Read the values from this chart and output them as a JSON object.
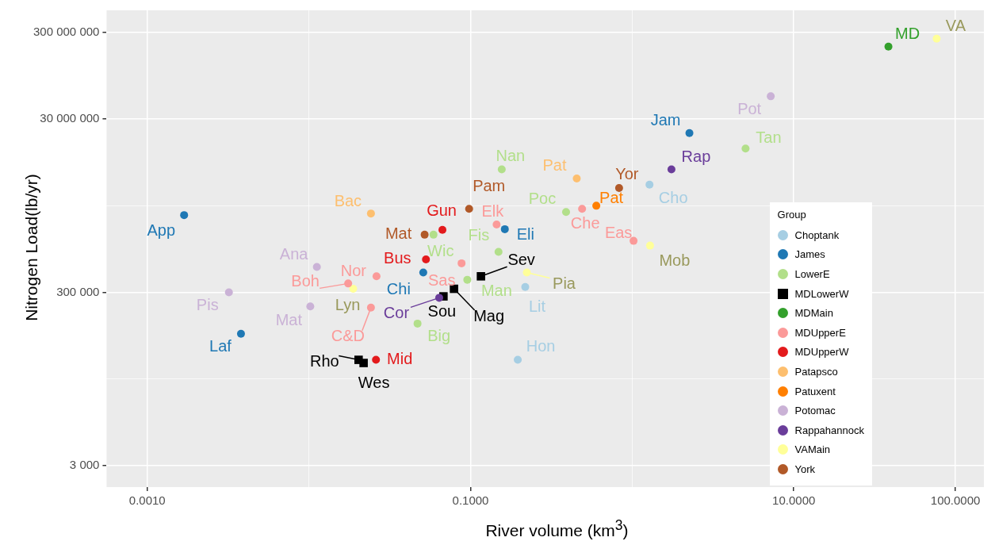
{
  "chart_data": {
    "type": "scatter",
    "xlabel": "River volume (km$^{3}$)",
    "ylabel": "Nitrogen Load(lb/yr)",
    "legend_title": "Group",
    "legend": "right",
    "grid": true,
    "log": "xy",
    "marker": "circle",
    "xlim": [
      0.00056,
      150
    ],
    "ylim": [
      1700,
      540000000
    ],
    "xticks": [
      {
        "value": 0.001,
        "label": "0.0010"
      },
      {
        "value": 0.01,
        "label": null
      },
      {
        "value": 0.1,
        "label": "0.1000"
      },
      {
        "value": 1,
        "label": null
      },
      {
        "value": 10,
        "label": "10.0000"
      },
      {
        "value": 100,
        "label": "100.0000"
      }
    ],
    "yticks": [
      {
        "value": 3000,
        "label": "3 000"
      },
      {
        "value": 30000,
        "label": null
      },
      {
        "value": 300000,
        "label": "300 000"
      },
      {
        "value": 3000000,
        "label": null
      },
      {
        "value": 30000000,
        "label": "30 000 000"
      },
      {
        "value": 300000000,
        "label": "300 000 000"
      }
    ],
    "series": [
      {
        "name": "Choptank",
        "color": "#a6cee3",
        "x": [
          1.28,
          0.218,
          0.196
        ],
        "values": [
          5250000,
          347000,
          50000
        ]
      },
      {
        "name": "James",
        "color": "#1f78b4",
        "x": [
          0.00169,
          0.0038,
          2.26,
          0.163,
          0.051
        ],
        "values": [
          2340000,
          100000,
          20700000,
          1610000,
          510000
        ]
      },
      {
        "name": "LowerE",
        "color": "#b2df8a",
        "x": [
          0.156,
          5.03,
          0.39,
          0.149,
          0.059,
          0.0955,
          0.047
        ],
        "values": [
          7900000,
          13700000,
          2540000,
          880000,
          1390000,
          420000,
          131000
        ]
      },
      {
        "name": "MDLowerW",
        "color": "#000000",
        "marker": "square",
        "x": [
          0.116,
          0.079,
          0.068,
          0.0203,
          0.0218
        ],
        "values": [
          460000,
          330000,
          270000,
          50000,
          46000
        ]
      },
      {
        "name": "MDMain",
        "color": "#33a02c",
        "x": [
          38.5
        ],
        "values": [
          206000000
        ]
      },
      {
        "name": "MDUpperE",
        "color": "#fb9a99",
        "x": [
          0.145,
          0.49,
          1.02,
          0.0262,
          0.0175,
          0.0242,
          0.088
        ],
        "values": [
          1820000,
          2760000,
          1180000,
          460000,
          380000,
          200000,
          650000
        ]
      },
      {
        "name": "MDUpperW",
        "color": "#e31a1c",
        "x": [
          0.067,
          0.053,
          0.026
        ],
        "values": [
          1580000,
          720000,
          50000
        ]
      },
      {
        "name": "Patapsco",
        "color": "#fdbf6f",
        "x": [
          0.0242,
          0.454
        ],
        "values": [
          2440000,
          6200000
        ]
      },
      {
        "name": "Patuxent",
        "color": "#ff7f00",
        "x": [
          0.6
        ],
        "values": [
          3000000
        ]
      },
      {
        "name": "Potomac",
        "color": "#cab2d6",
        "x": [
          7.2,
          0.0112,
          0.0032,
          0.0102
        ],
        "values": [
          55000000,
          590000,
          300000,
          207000
        ]
      },
      {
        "name": "Rappahannock",
        "color": "#6a3d9a",
        "x": [
          1.75,
          0.064
        ],
        "values": [
          7900000,
          260000
        ]
      },
      {
        "name": "VAMain",
        "color": "#ffff99",
        "x": [
          76.5,
          1.29,
          0.223,
          0.0188
        ],
        "values": [
          254000000,
          1040000,
          510000,
          330000
        ]
      },
      {
        "name": "York",
        "color": "#b15928",
        "x": [
          0.83,
          0.098,
          0.052
        ],
        "values": [
          4800000,
          2760000,
          1390000
        ]
      }
    ],
    "annotations": [
      {
        "text": "Cho",
        "x": 1.28,
        "y": 5250000
      },
      {
        "text": "Lit",
        "x": 0.218,
        "y": 347000
      },
      {
        "text": "Hon",
        "x": 0.196,
        "y": 50000
      },
      {
        "text": "App",
        "x": 0.00169,
        "y": 2340000
      },
      {
        "text": "Laf",
        "x": 0.0038,
        "y": 100000
      },
      {
        "text": "Jam",
        "x": 2.26,
        "y": 20700000
      },
      {
        "text": "Eli",
        "x": 0.163,
        "y": 1610000
      },
      {
        "text": "Chi",
        "x": 0.051,
        "y": 510000
      },
      {
        "text": "Nan",
        "x": 0.156,
        "y": 7900000
      },
      {
        "text": "Tan",
        "x": 5.03,
        "y": 13700000
      },
      {
        "text": "Poc",
        "x": 0.39,
        "y": 2540000
      },
      {
        "text": "Fis",
        "x": 0.149,
        "y": 880000
      },
      {
        "text": "Wic",
        "x": 0.059,
        "y": 1390000
      },
      {
        "text": "Man",
        "x": 0.0955,
        "y": 420000
      },
      {
        "text": "Big",
        "x": 0.047,
        "y": 131000
      },
      {
        "text": "Sev",
        "x": 0.116,
        "y": 460000
      },
      {
        "text": "Mag",
        "x": 0.079,
        "y": 330000
      },
      {
        "text": "Sou",
        "x": 0.068,
        "y": 270000
      },
      {
        "text": "Rho",
        "x": 0.0203,
        "y": 50000
      },
      {
        "text": "Wes",
        "x": 0.0218,
        "y": 46000
      },
      {
        "text": "MD",
        "x": 38.5,
        "y": 206000000
      },
      {
        "text": "Elk",
        "x": 0.145,
        "y": 1820000
      },
      {
        "text": "Che",
        "x": 0.49,
        "y": 2760000
      },
      {
        "text": "Eas",
        "x": 1.02,
        "y": 1180000
      },
      {
        "text": "Nor",
        "x": 0.0262,
        "y": 460000
      },
      {
        "text": "Boh",
        "x": 0.0175,
        "y": 380000
      },
      {
        "text": "C&D",
        "x": 0.0242,
        "y": 200000
      },
      {
        "text": "Sas",
        "x": 0.088,
        "y": 650000
      },
      {
        "text": "Gun",
        "x": 0.067,
        "y": 1580000
      },
      {
        "text": "Bus",
        "x": 0.053,
        "y": 720000
      },
      {
        "text": "Mid",
        "x": 0.026,
        "y": 50000
      },
      {
        "text": "Bac",
        "x": 0.0242,
        "y": 2440000
      },
      {
        "text": "Pat",
        "x": 0.454,
        "y": 6200000
      },
      {
        "text": "Pat",
        "x": 0.6,
        "y": 3000000
      },
      {
        "text": "Pot",
        "x": 7.2,
        "y": 55000000
      },
      {
        "text": "Ana",
        "x": 0.0112,
        "y": 590000
      },
      {
        "text": "Pis",
        "x": 0.0032,
        "y": 300000
      },
      {
        "text": "Mat",
        "x": 0.0102,
        "y": 207000
      },
      {
        "text": "Rap",
        "x": 1.75,
        "y": 7900000
      },
      {
        "text": "Cor",
        "x": 0.064,
        "y": 260000
      },
      {
        "text": "VA",
        "x": 76.5,
        "y": 254000000
      },
      {
        "text": "Mob",
        "x": 1.29,
        "y": 1040000
      },
      {
        "text": "Pia",
        "x": 0.223,
        "y": 510000
      },
      {
        "text": "Lyn",
        "x": 0.0188,
        "y": 330000
      },
      {
        "text": "Yor",
        "x": 0.83,
        "y": 4800000
      },
      {
        "text": "Pam",
        "x": 0.098,
        "y": 2760000
      },
      {
        "text": "Mat",
        "x": 0.052,
        "y": 1390000
      }
    ]
  }
}
